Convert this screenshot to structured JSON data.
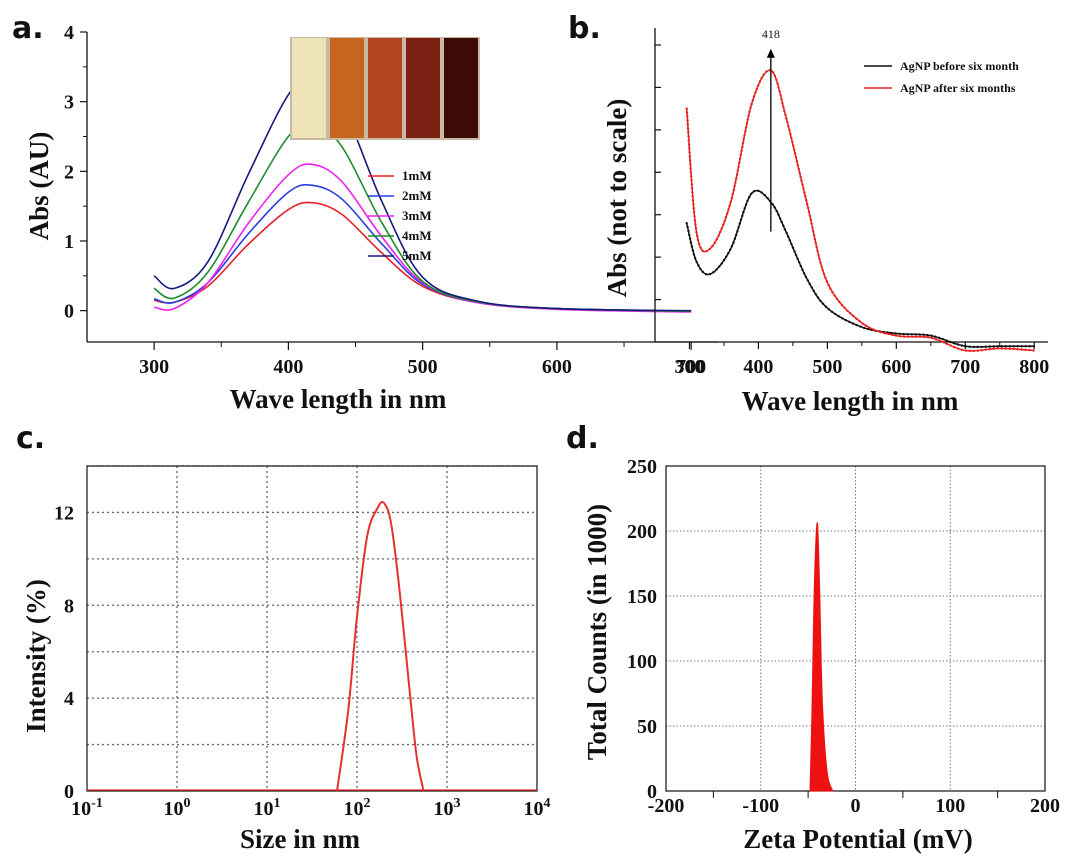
{
  "panels": {
    "a": {
      "letter": "a."
    },
    "b": {
      "letter": "b."
    },
    "c": {
      "letter": "c."
    },
    "d": {
      "letter": "d."
    }
  },
  "chart_data": [
    {
      "panel": "a",
      "type": "line",
      "xlabel": "Wave length in nm",
      "ylabel": "Abs (AU)",
      "xlim": [
        250,
        720
      ],
      "ylim": [
        -0.45,
        4.0
      ],
      "xticks": [
        300,
        400,
        500,
        600,
        700
      ],
      "yticks": [
        0,
        1,
        2,
        3,
        4
      ],
      "legend_position": "right, below inset",
      "inset": "photo of five vials (pale yellow to dark brown)",
      "x": [
        300,
        315,
        340,
        370,
        400,
        418,
        440,
        470,
        500,
        540,
        600,
        700
      ],
      "series": [
        {
          "name": "1mM",
          "color": "#e8202a",
          "values": [
            0.15,
            0.12,
            0.35,
            0.95,
            1.45,
            1.55,
            1.38,
            0.82,
            0.35,
            0.12,
            0.03,
            -0.01
          ]
        },
        {
          "name": "2mM",
          "color": "#2a3be0",
          "values": [
            0.17,
            0.12,
            0.4,
            1.1,
            1.7,
            1.8,
            1.6,
            0.95,
            0.38,
            0.12,
            0.03,
            -0.01
          ]
        },
        {
          "name": "3mM",
          "color": "#ee22ee",
          "values": [
            0.05,
            0.03,
            0.4,
            1.25,
            1.95,
            2.1,
            1.85,
            1.05,
            0.4,
            0.12,
            0.02,
            -0.02
          ]
        },
        {
          "name": "4mM",
          "color": "#1e8c2a",
          "values": [
            0.32,
            0.18,
            0.55,
            1.55,
            2.5,
            2.7,
            2.35,
            1.25,
            0.42,
            0.13,
            0.03,
            -0.01
          ]
        },
        {
          "name": "5mM",
          "color": "#141a7a",
          "values": [
            0.5,
            0.32,
            0.7,
            1.95,
            3.1,
            3.35,
            2.95,
            1.55,
            0.48,
            0.14,
            0.03,
            0.0
          ]
        }
      ]
    },
    {
      "panel": "b",
      "type": "line",
      "xlabel": "Wave length in nm",
      "ylabel": "Abs (not to scale)",
      "xlim": [
        250,
        820
      ],
      "ylim": [
        0,
        7.4
      ],
      "xticks": [
        300,
        400,
        500,
        600,
        700,
        800
      ],
      "yticks": [
        1,
        2,
        3,
        4,
        5,
        6,
        7
      ],
      "y_tick_labels": false,
      "legend_position": "top-right",
      "annotation": {
        "text": "418",
        "x": 418
      },
      "x": [
        296,
        310,
        330,
        360,
        390,
        418,
        440,
        470,
        500,
        550,
        600,
        650,
        700,
        750,
        800
      ],
      "series": [
        {
          "name": "AgNP before six month",
          "color": "#111111",
          "values": [
            2.8,
            1.9,
            1.6,
            2.2,
            3.5,
            3.3,
            2.6,
            1.5,
            0.8,
            0.35,
            0.2,
            0.15,
            -0.1,
            -0.1,
            -0.1
          ]
        },
        {
          "name": "AgNP after six months",
          "color": "#e82020",
          "values": [
            5.5,
            2.6,
            2.2,
            3.3,
            5.6,
            6.4,
            5.3,
            3.3,
            1.4,
            0.45,
            0.15,
            0.1,
            -0.2,
            -0.15,
            -0.2
          ]
        }
      ]
    },
    {
      "panel": "c",
      "type": "line",
      "xscale": "log",
      "xlabel": "Size in nm",
      "ylabel": "Intensity (%)",
      "xlim": [
        0.1,
        10000
      ],
      "ylim": [
        0,
        14
      ],
      "xticks": [
        {
          "base": "10",
          "exp": "-1"
        },
        {
          "base": "10",
          "exp": "0"
        },
        {
          "base": "10",
          "exp": "1"
        },
        {
          "base": "10",
          "exp": "2"
        },
        {
          "base": "10",
          "exp": "3"
        },
        {
          "base": "10",
          "exp": "4"
        }
      ],
      "yticks": [
        0,
        4,
        8,
        12
      ],
      "gridlines_y": [
        2,
        4,
        6,
        8,
        10,
        12,
        14
      ],
      "grid": "dotted",
      "series": [
        {
          "name": "",
          "color": "#e83030",
          "x": [
            60,
            80,
            100,
            130,
            170,
            200,
            240,
            300,
            380,
            460,
            550
          ],
          "values": [
            0,
            3.5,
            7.5,
            11.0,
            12.2,
            12.4,
            11.5,
            8.5,
            4.5,
            1.5,
            0
          ]
        }
      ]
    },
    {
      "panel": "d",
      "type": "area",
      "xlabel": "Zeta Potential (mV)",
      "ylabel": "Total Counts (in 1000)",
      "xlim": [
        -200,
        200
      ],
      "ylim": [
        0,
        250
      ],
      "xticks": [
        -200,
        -100,
        0,
        100,
        200
      ],
      "yticks": [
        0,
        50,
        100,
        150,
        200,
        250
      ],
      "grid": "dotted",
      "series": [
        {
          "name": "",
          "color": "#ee1111",
          "x": [
            -48,
            -46,
            -44,
            -42,
            -40,
            -38,
            -35,
            -30,
            -24
          ],
          "values": [
            0,
            60,
            140,
            190,
            205,
            160,
            70,
            15,
            0
          ]
        }
      ]
    }
  ]
}
